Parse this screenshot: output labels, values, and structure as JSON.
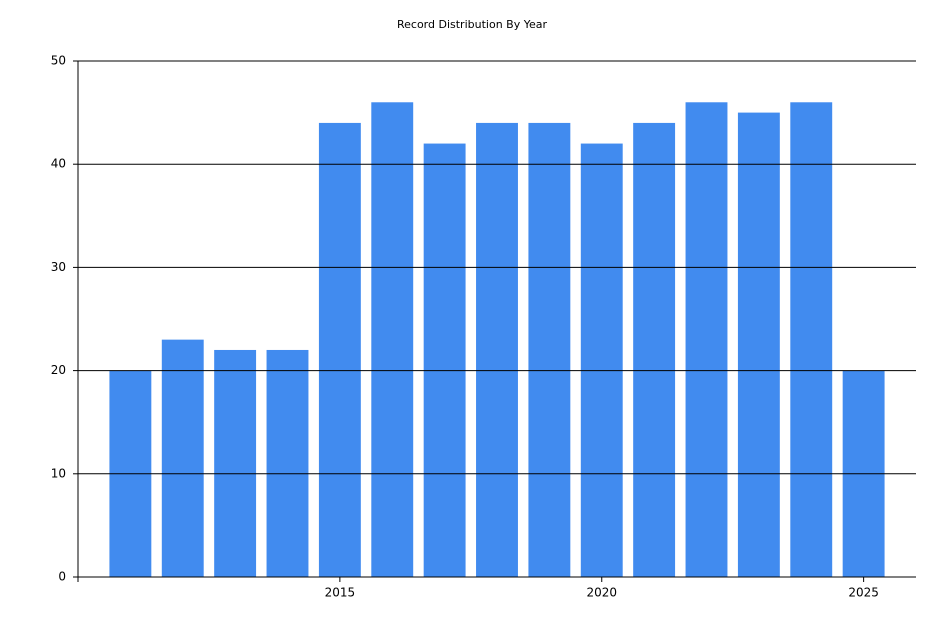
{
  "chart_data": {
    "type": "bar",
    "title": "Record Distribution By Year",
    "x": [
      2011,
      2012,
      2013,
      2014,
      2015,
      2016,
      2017,
      2018,
      2019,
      2020,
      2021,
      2022,
      2023,
      2024,
      2025
    ],
    "values": [
      20,
      23,
      22,
      22,
      44,
      46,
      42,
      44,
      44,
      42,
      44,
      46,
      45,
      46,
      20
    ],
    "color": "#418bef",
    "xlim": [
      2010,
      2026
    ],
    "xticks": [
      2015,
      2020,
      2025
    ],
    "ylim": [
      0,
      50
    ],
    "yticks": [
      0,
      10,
      20,
      30,
      40,
      50
    ],
    "grid": true
  }
}
